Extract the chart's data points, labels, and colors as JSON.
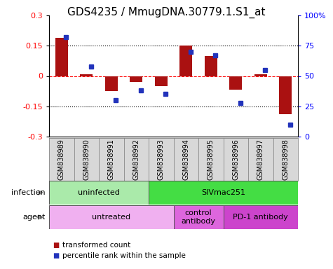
{
  "title": "GDS4235 / MmugDNA.30779.1.S1_at",
  "samples": [
    "GSM838989",
    "GSM838990",
    "GSM838991",
    "GSM838992",
    "GSM838993",
    "GSM838994",
    "GSM838995",
    "GSM838996",
    "GSM838997",
    "GSM838998"
  ],
  "transformed_count": [
    0.19,
    0.01,
    -0.075,
    -0.03,
    -0.05,
    0.152,
    0.1,
    -0.068,
    0.01,
    -0.19
  ],
  "percentile_rank": [
    82,
    58,
    30,
    38,
    35,
    70,
    67,
    28,
    55,
    10
  ],
  "ylim_left": [
    -0.3,
    0.3
  ],
  "ylim_right": [
    0,
    100
  ],
  "yticks_left": [
    -0.3,
    -0.15,
    0.0,
    0.15,
    0.3
  ],
  "yticks_right": [
    0,
    25,
    50,
    75,
    100
  ],
  "yticklabels_left": [
    "-0.3",
    "-0.15",
    "0",
    "0.15",
    "0.3"
  ],
  "yticklabels_right": [
    "0",
    "25",
    "50",
    "75",
    "100%"
  ],
  "dotted_lines": [
    -0.15,
    0.15
  ],
  "bar_color": "#aa1111",
  "dot_color": "#2233bb",
  "infection_groups": [
    {
      "label": "uninfected",
      "start": 0,
      "end": 4,
      "color": "#aaeaaa"
    },
    {
      "label": "SIVmac251",
      "start": 4,
      "end": 10,
      "color": "#44dd44"
    }
  ],
  "agent_groups": [
    {
      "label": "untreated",
      "start": 0,
      "end": 5,
      "color": "#f0b0f0"
    },
    {
      "label": "control\nantibody",
      "start": 5,
      "end": 7,
      "color": "#dd66dd"
    },
    {
      "label": "PD-1 antibody",
      "start": 7,
      "end": 10,
      "color": "#cc44cc"
    }
  ],
  "legend_items": [
    {
      "label": "transformed count",
      "color": "#aa1111"
    },
    {
      "label": "percentile rank within the sample",
      "color": "#2233bb"
    }
  ],
  "infection_label": "infection",
  "agent_label": "agent",
  "title_fontsize": 11,
  "tick_fontsize": 8,
  "sample_fontsize": 7,
  "row_fontsize": 8
}
